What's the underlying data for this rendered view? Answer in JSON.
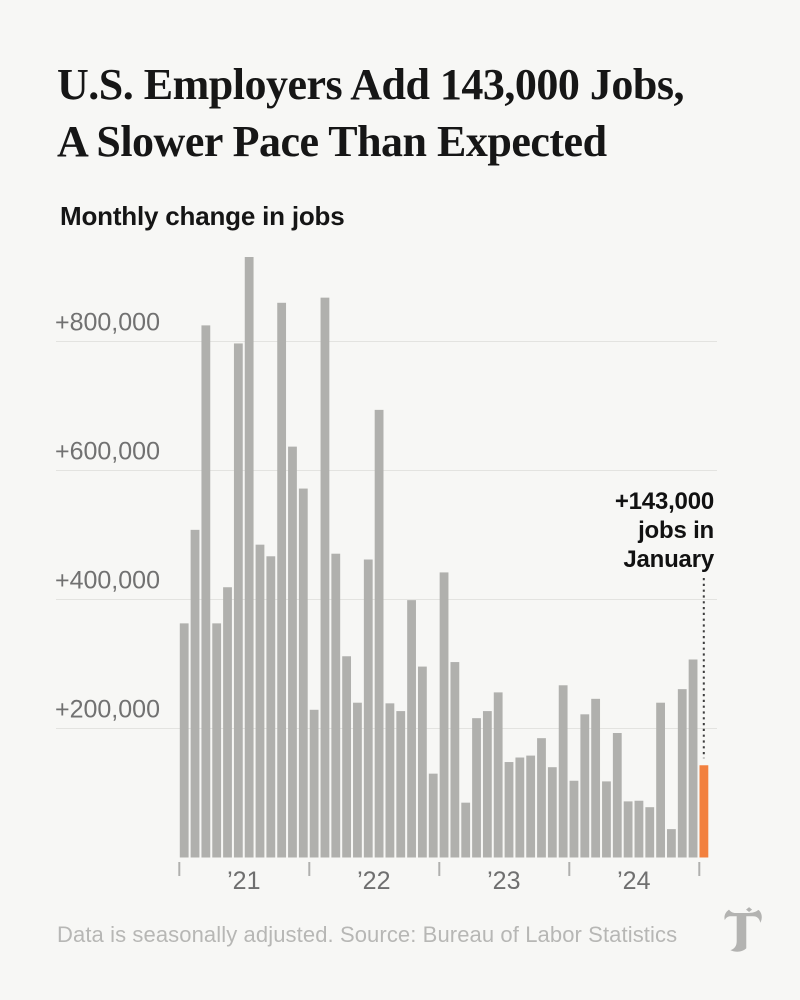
{
  "page": {
    "background": "#f7f7f5"
  },
  "header": {
    "title_lines": [
      "U.S. Employers Add 143,000 Jobs,",
      "A Slower Pace Than Expected"
    ],
    "subtitle": "Monthly change in jobs"
  },
  "annotation": {
    "lines": [
      "+143,000",
      "jobs in",
      "January"
    ]
  },
  "footer": {
    "note": "Data is seasonally adjusted. Source: Bureau of Labor Statistics",
    "logo": "new-york-times-t-logo"
  },
  "chart_data": {
    "type": "bar",
    "title": "Monthly change in jobs",
    "xlabel": "",
    "ylabel": "Monthly change in jobs",
    "ylim": [
      0,
      950000
    ],
    "grid": true,
    "legend": false,
    "bar_color": "#b0b0ad",
    "highlight_color": "#f2803f",
    "gridline_color": "#e3e3e0",
    "axis_label_color": "#717171",
    "tick_color": "#b0b0ae",
    "x": [
      "Jan 2021",
      "Feb 2021",
      "Mar 2021",
      "Apr 2021",
      "May 2021",
      "Jun 2021",
      "Jul 2021",
      "Aug 2021",
      "Sep 2021",
      "Oct 2021",
      "Nov 2021",
      "Dec 2021",
      "Jan 2022",
      "Feb 2022",
      "Mar 2022",
      "Apr 2022",
      "May 2022",
      "Jun 2022",
      "Jul 2022",
      "Aug 2022",
      "Sep 2022",
      "Oct 2022",
      "Nov 2022",
      "Dec 2022",
      "Jan 2023",
      "Feb 2023",
      "Mar 2023",
      "Apr 2023",
      "May 2023",
      "Jun 2023",
      "Jul 2023",
      "Aug 2023",
      "Sep 2023",
      "Oct 2023",
      "Nov 2023",
      "Dec 2023",
      "Jan 2024",
      "Feb 2024",
      "Mar 2024",
      "Apr 2024",
      "May 2024",
      "Jun 2024",
      "Jul 2024",
      "Aug 2024",
      "Sep 2024",
      "Oct 2024",
      "Nov 2024",
      "Dec 2024",
      "Jan 2025"
    ],
    "values": [
      363000,
      508000,
      825000,
      363000,
      419000,
      797000,
      931000,
      485000,
      467000,
      860000,
      637000,
      572000,
      229000,
      868000,
      471000,
      312000,
      240000,
      462000,
      694000,
      239000,
      227000,
      399000,
      296000,
      130000,
      442000,
      303000,
      85000,
      216000,
      227000,
      256000,
      148000,
      155000,
      158000,
      185000,
      140000,
      267000,
      119000,
      222000,
      246000,
      118000,
      193000,
      87000,
      88000,
      78000,
      240000,
      44000,
      261000,
      307000,
      143000
    ],
    "highlight_index": 48,
    "highlight_label": "+143,000 jobs in January",
    "y_ticks": [
      {
        "value": 200000,
        "label": "+200,000"
      },
      {
        "value": 400000,
        "label": "+400,000"
      },
      {
        "value": 600000,
        "label": "+600,000"
      },
      {
        "value": 800000,
        "label": "+800,000"
      }
    ],
    "x_axis": {
      "tick_years": [
        "2021",
        "2022",
        "2023",
        "2024",
        "2025"
      ],
      "year_labels": [
        "’21",
        "’22",
        "’23",
        "’24"
      ]
    }
  }
}
